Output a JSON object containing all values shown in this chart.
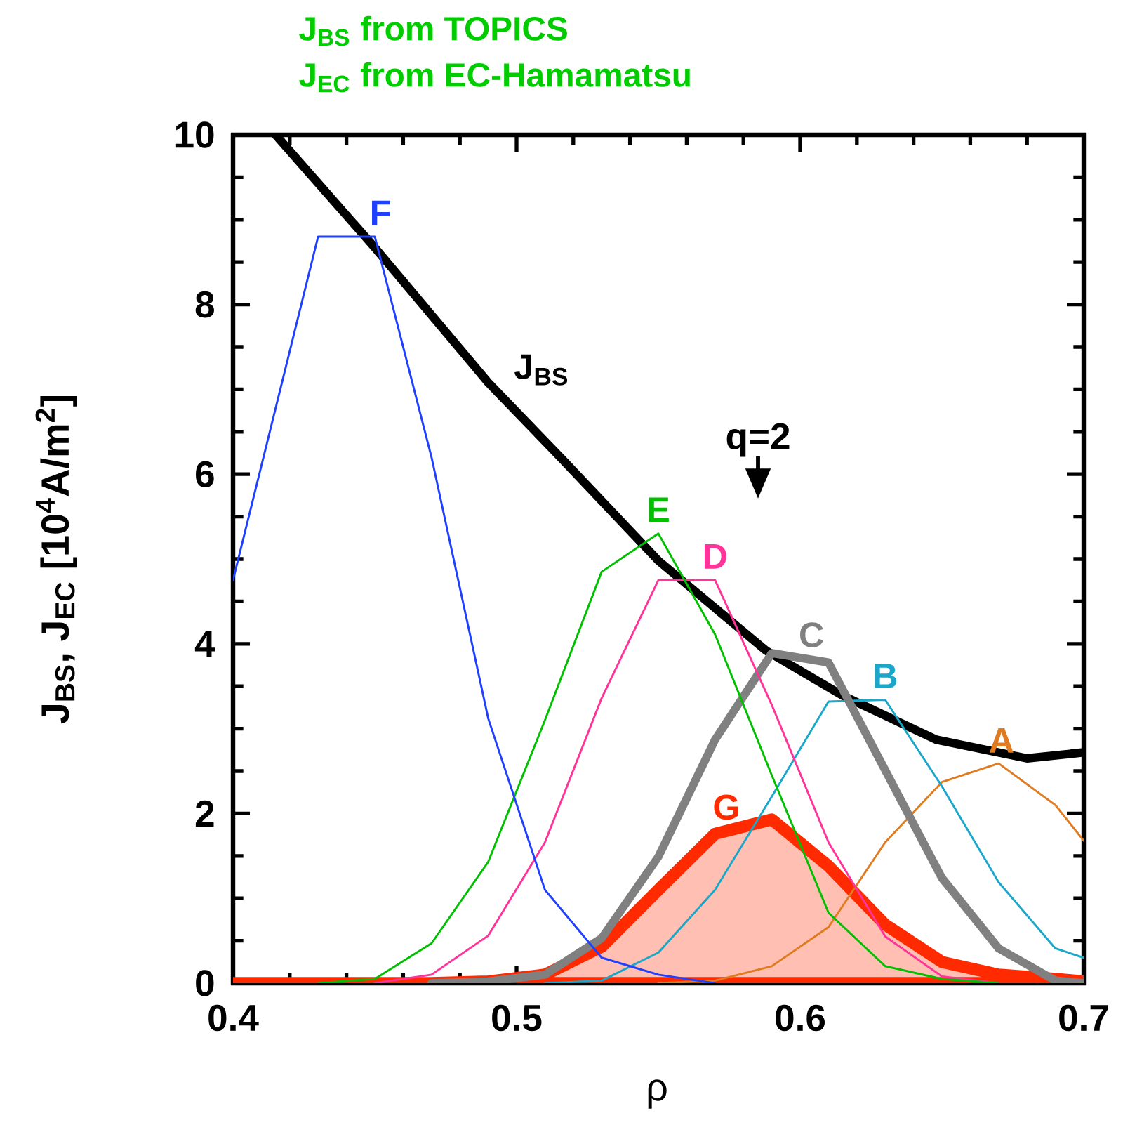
{
  "chart_data": {
    "type": "line",
    "title": "J$_{BS}$ from TOPICS",
    "subtitle": "J$_{EC}$ from EC-Hamamatsu",
    "xlabel": "ρ",
    "ylabel": "J$_{BS}$, J$_{EC}$ [10$^{4}$A/m$^{2}$]",
    "x": [
      0.4,
      0.41,
      0.43,
      0.45,
      0.47,
      0.49,
      0.51,
      0.53,
      0.55,
      0.57,
      0.59,
      0.61,
      0.63,
      0.65,
      0.67,
      0.69,
      0.7
    ],
    "series": [
      {
        "color": "#000000",
        "x": [
          0.415,
          0.45,
          0.49,
          0.516,
          0.55,
          0.588,
          0.615,
          0.648,
          0.68,
          0.7
        ],
        "values": [
          10,
          8.67,
          7.08,
          6.18,
          4.98,
          3.92,
          3.39,
          2.87,
          2.65,
          2.72
        ]
      },
      {
        "color": "#e07b20",
        "values": [
          null,
          null,
          null,
          null,
          null,
          null,
          null,
          null,
          0,
          0.03,
          0.2,
          0.66,
          1.66,
          2.37,
          2.59,
          2.1,
          1.68
        ]
      },
      {
        "color": "#1aa7c9",
        "values": [
          null,
          null,
          null,
          null,
          null,
          null,
          0,
          0.03,
          0.36,
          1.1,
          2.2,
          3.32,
          3.34,
          2.32,
          1.19,
          0.41,
          0.3
        ]
      },
      {
        "color": "#808080",
        "values": [
          null,
          null,
          null,
          null,
          0,
          0.02,
          0.1,
          0.53,
          1.49,
          2.87,
          3.89,
          3.78,
          2.51,
          1.24,
          0.41,
          0.03,
          0
        ]
      },
      {
        "color": "#ff3399",
        "values": [
          null,
          null,
          null,
          0,
          0.1,
          0.56,
          1.66,
          3.36,
          4.75,
          4.75,
          3.28,
          1.66,
          0.55,
          0.08,
          0,
          null,
          null
        ]
      },
      {
        "color": "#00c000",
        "values": [
          null,
          null,
          0,
          0.05,
          0.47,
          1.43,
          3.1,
          4.85,
          5.3,
          4.11,
          2.45,
          0.83,
          0.2,
          0.05,
          0,
          null,
          null
        ]
      },
      {
        "color": "#2040ff",
        "values": [
          4.75,
          6.1,
          8.8,
          8.8,
          6.2,
          3.12,
          1.1,
          0.3,
          0.1,
          0,
          null,
          null,
          null,
          null,
          null,
          null,
          null
        ]
      },
      {
        "type": "area",
        "color": "#ff2a00",
        "values": [
          0,
          0,
          0,
          0,
          0,
          0.02,
          0.1,
          0.43,
          1.1,
          1.76,
          1.93,
          1.38,
          0.69,
          0.25,
          0.1,
          0.05,
          0.02
        ]
      }
    ],
    "annotations": [
      {
        "text": "J$_{BS}$",
        "x": 0.495,
        "y": 6.91
      },
      {
        "text": "A",
        "x": 0.671,
        "y": 2.58
      },
      {
        "text": "B",
        "x": 0.63,
        "y": 3.34
      },
      {
        "text": "C",
        "x": 0.604,
        "y": 3.82
      },
      {
        "text": "D",
        "x": 0.57,
        "y": 4.75
      },
      {
        "text": "E",
        "x": 0.55,
        "y": 5.3
      },
      {
        "text": "F",
        "x": 0.452,
        "y": 8.8
      },
      {
        "text": "G",
        "x": 0.574,
        "y": 1.79
      },
      "q=2"
    ],
    "xlim": [
      0.4,
      0.7
    ],
    "ylim": [
      0,
      10
    ],
    "xticks": [
      0.4,
      {
        "value": 0.42,
        "label": null
      },
      {
        "value": 0.44,
        "label": null
      },
      {
        "value": 0.46,
        "label": null
      },
      {
        "value": 0.48,
        "label": null
      },
      0.5,
      {
        "value": 0.52,
        "label": null
      },
      {
        "value": 0.54,
        "label": null
      },
      {
        "value": 0.56,
        "label": null
      },
      {
        "value": 0.58,
        "label": null
      },
      0.6,
      {
        "value": 0.62,
        "label": null
      },
      {
        "value": 0.64,
        "label": null
      },
      {
        "value": 0.66,
        "label": null
      },
      {
        "value": 0.68,
        "label": null
      },
      0.7
    ],
    "yticks": [
      0,
      {
        "value": 0.5,
        "label": null
      },
      {
        "value": 1,
        "label": null
      },
      {
        "value": 1.5,
        "label": null
      },
      2,
      {
        "value": 2.5,
        "label": null
      },
      {
        "value": 3,
        "label": null
      },
      {
        "value": 3.5,
        "label": null
      },
      4,
      {
        "value": 4.5,
        "label": null
      },
      {
        "value": 5,
        "label": null
      },
      {
        "value": 5.5,
        "label": null
      },
      6,
      {
        "value": 6.5,
        "label": null
      },
      {
        "value": 7,
        "label": null
      },
      {
        "value": 7.5,
        "label": null
      },
      8,
      {
        "value": 8.5,
        "label": null
      },
      {
        "value": 9,
        "label": null
      },
      {
        "value": 9.5,
        "label": null
      },
      10
    ]
  }
}
